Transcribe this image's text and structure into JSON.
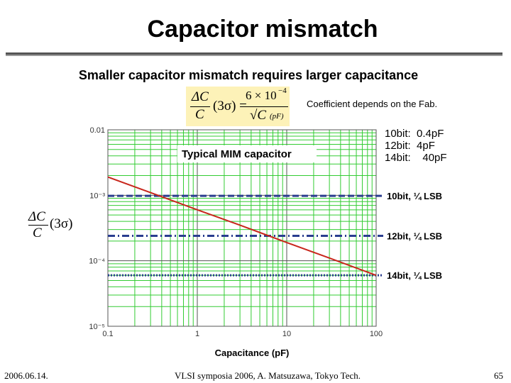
{
  "slide": {
    "title": "Capacitor mismatch",
    "subtitle": "Smaller capacitor mismatch requires larger capacitance",
    "formula": {
      "lhs_num": "ΔC",
      "lhs_den": "C",
      "lhs_paren": "(3σ) =",
      "rhs_num": "6 × 10",
      "rhs_exp": "−4",
      "rhs_den": "√C",
      "rhs_unit": "(pF)"
    },
    "coefficient_note": "Coefficient depends on the Fab.",
    "bit_capacitance": [
      {
        "bits": "10bit:",
        "value": "0.4pF"
      },
      {
        "bits": "12bit:",
        "value": "4pF"
      },
      {
        "bits": "14bit:",
        "value": "40pF"
      }
    ],
    "ylabel_num": "ΔC",
    "ylabel_den": "C",
    "ylabel_paren": "(3σ)"
  },
  "footer": {
    "date": "2006.06.14.",
    "venue": "VLSI symposia 2006,  A. Matsuzawa, Tokyo Tech.",
    "page": "65"
  },
  "colors": {
    "grid": "#33cc33",
    "mismatch_line": "#c8261c",
    "lsb_line": "#2a3d8f",
    "formula_bg": "#fdf2b8"
  },
  "chart_data": {
    "type": "line",
    "xscale": "log",
    "yscale": "log",
    "xlim": [
      0.1,
      100
    ],
    "ylim": [
      1e-05,
      0.01
    ],
    "xlabel": "Capacitance (pF)",
    "x_ticks": [
      "0.1",
      "1",
      "10",
      "100"
    ],
    "y_ticks": [
      "0.01",
      "10⁻³",
      "10⁻⁴",
      "10⁻⁵"
    ],
    "annotation": "Typical MIM capacitor",
    "series": [
      {
        "x": [
          0.1,
          0.3,
          1,
          3,
          10,
          30,
          100
        ],
        "y": [
          0.0019,
          0.0011,
          0.0006,
          0.00035,
          0.00019,
          0.00011,
          6e-05
        ]
      }
    ],
    "hlines": [
      {
        "label": "10bit, ¼ LSB",
        "y": 0.00098,
        "style": "dashed"
      },
      {
        "label": "12bit, ¼ LSB",
        "y": 0.00024,
        "style": "dashdot"
      },
      {
        "label": "14bit, ¼ LSB",
        "y": 6e-05,
        "style": "dotted"
      }
    ]
  }
}
